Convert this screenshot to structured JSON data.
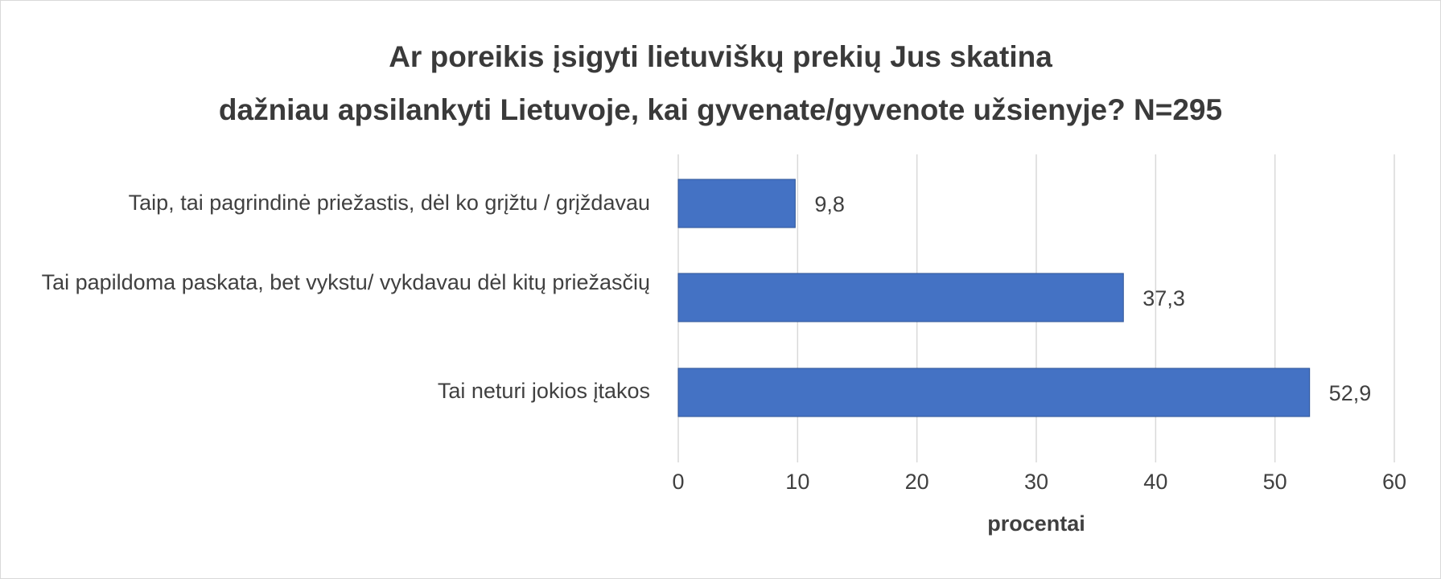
{
  "chart_data": {
    "type": "bar",
    "orientation": "horizontal",
    "title": [
      "Ar poreikis įsigyti lietuviškų prekių Jus skatina",
      "dažniau apsilankyti Lietuvoje, kai gyvenate/gyvenote užsienyje? N=295"
    ],
    "categories": [
      "Taip, tai pagrindinė priežastis, dėl ko grįžtu / grįždavau",
      "Tai papildoma paskata, bet vykstu/ vykdavau dėl kitų priežasčių",
      "Tai neturi jokios įtakos"
    ],
    "values": [
      9.8,
      37.3,
      52.9
    ],
    "data_labels": [
      "9,8",
      "37,3",
      "52,9"
    ],
    "xlabel": "procentai",
    "ylabel": "",
    "xlim": [
      0,
      60
    ],
    "xticks": [
      "0",
      "10",
      "20",
      "30",
      "40",
      "50",
      "60"
    ],
    "grid": true,
    "legend": "none",
    "colors": {
      "bar": "#4472c4",
      "grid": "#d9d9d9",
      "title": "#3a3a3a",
      "text": "#404040"
    }
  }
}
